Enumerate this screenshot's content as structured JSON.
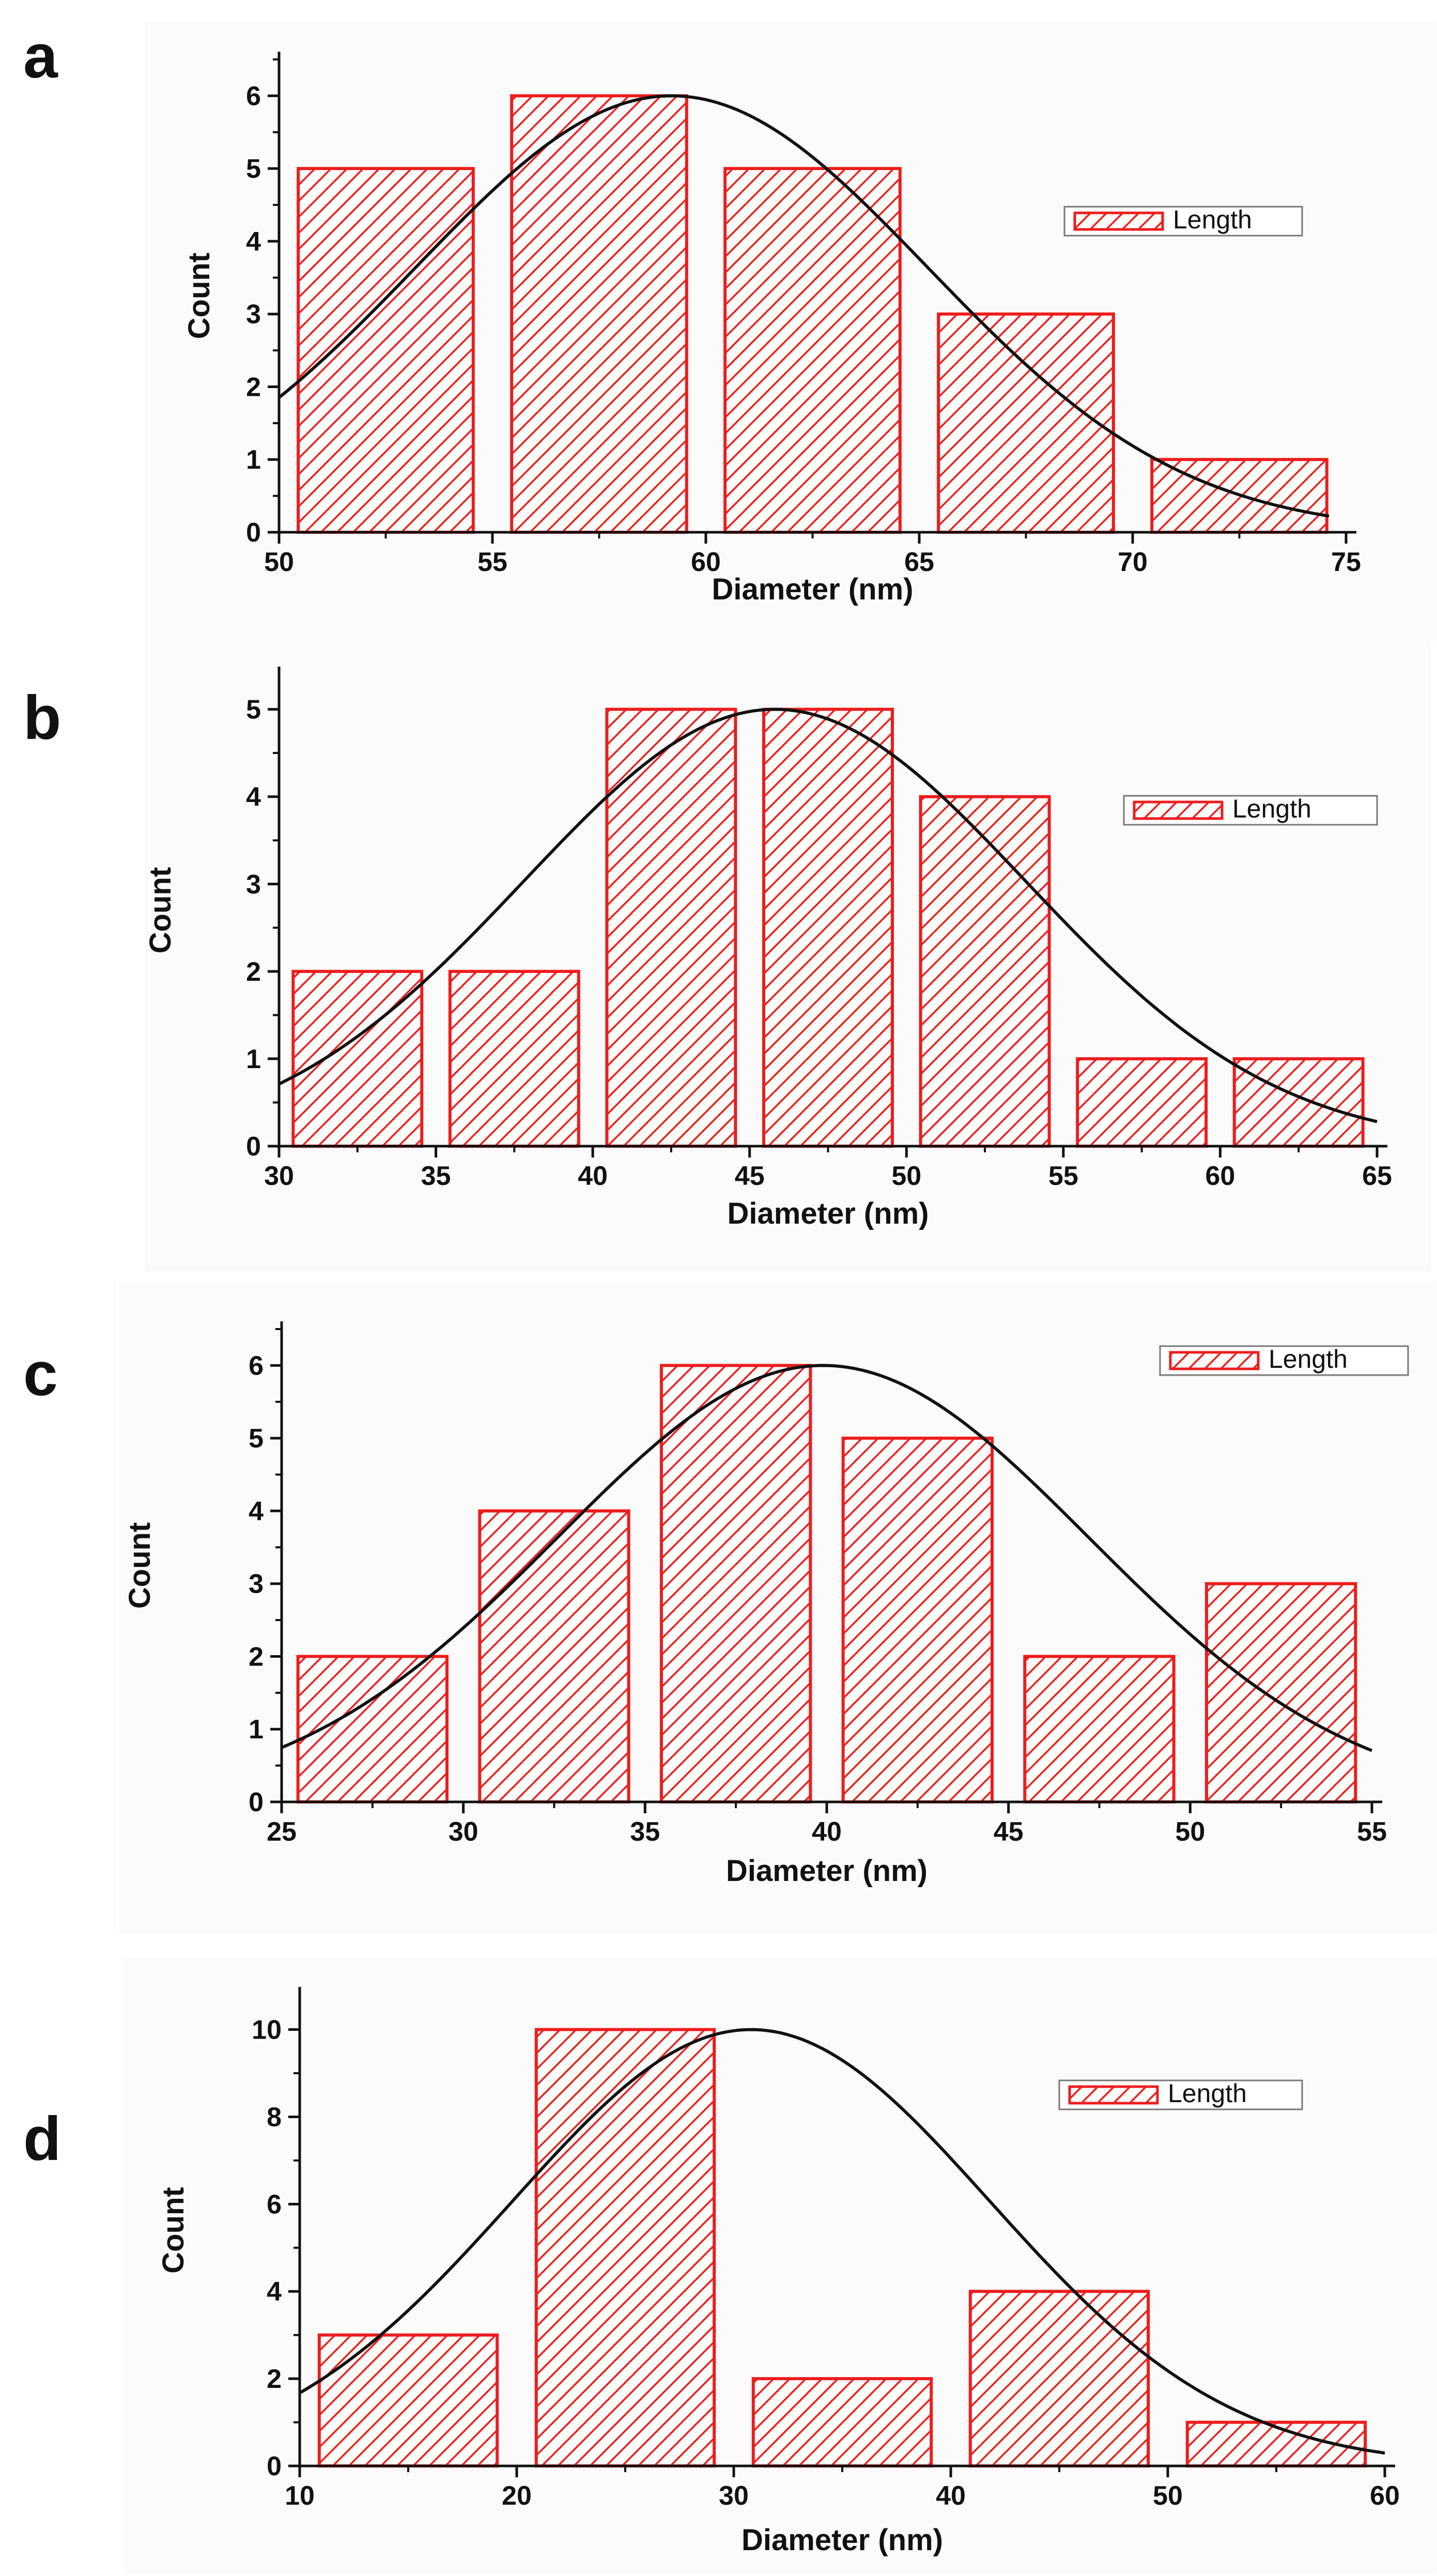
{
  "colors": {
    "bar_edge": "#ee1c1c",
    "hatch": "#ee1c1c",
    "curve": "#111111",
    "axis": "#111111",
    "panel_bg": "#fbfbfb"
  },
  "chart_data": [
    {
      "panel": "a",
      "type": "bar",
      "title": "",
      "xlabel": "Diameter (nm)",
      "ylabel": "Count",
      "xlim": [
        50,
        75
      ],
      "ylim": [
        0,
        6.5
      ],
      "xticks": [
        50,
        55,
        60,
        65,
        70,
        75
      ],
      "yticks": [
        0,
        1,
        2,
        3,
        4,
        5,
        6
      ],
      "bins": [
        [
          50,
          55
        ],
        [
          55,
          60
        ],
        [
          60,
          65
        ],
        [
          65,
          70
        ],
        [
          70,
          75
        ]
      ],
      "values": [
        5,
        6,
        5,
        3,
        1
      ],
      "legend": "Length",
      "fit": {
        "type": "gaussian",
        "mean": 59.2,
        "sigma": 6.0,
        "amplitude": 6.0,
        "x_range": [
          50,
          74.6
        ]
      }
    },
    {
      "panel": "b",
      "type": "bar",
      "title": "",
      "xlabel": "Diameter (nm)",
      "ylabel": "Count",
      "xlim": [
        30,
        65
      ],
      "ylim": [
        0,
        5.4
      ],
      "xticks": [
        30,
        35,
        40,
        45,
        50,
        55,
        60,
        65
      ],
      "yticks": [
        0,
        1,
        2,
        3,
        4,
        5
      ],
      "bins": [
        [
          30,
          35
        ],
        [
          35,
          40
        ],
        [
          40,
          45
        ],
        [
          45,
          50
        ],
        [
          50,
          55
        ],
        [
          55,
          60
        ],
        [
          60,
          65
        ]
      ],
      "values": [
        2,
        2,
        5,
        5,
        4,
        1,
        1
      ],
      "legend": "Length",
      "fit": {
        "type": "gaussian",
        "mean": 45.8,
        "sigma": 8.0,
        "amplitude": 5.0,
        "x_range": [
          30,
          65
        ]
      }
    },
    {
      "panel": "c",
      "type": "bar",
      "title": "",
      "xlabel": "Diameter (nm)",
      "ylabel": "Count",
      "xlim": [
        25,
        55
      ],
      "ylim": [
        0,
        6.5
      ],
      "xticks": [
        25,
        30,
        35,
        40,
        45,
        50,
        55
      ],
      "yticks": [
        0,
        1,
        2,
        3,
        4,
        5,
        6
      ],
      "bins": [
        [
          25,
          30
        ],
        [
          30,
          35
        ],
        [
          35,
          40
        ],
        [
          40,
          45
        ],
        [
          45,
          50
        ],
        [
          50,
          55
        ]
      ],
      "values": [
        2,
        4,
        6,
        5,
        2,
        3
      ],
      "legend": "Length",
      "fit": {
        "type": "gaussian",
        "mean": 39.9,
        "sigma": 7.3,
        "amplitude": 6.0,
        "x_range": [
          25,
          55
        ]
      }
    },
    {
      "panel": "d",
      "type": "bar",
      "title": "",
      "xlabel": "Diameter (nm)",
      "ylabel": "Count",
      "xlim": [
        10,
        60
      ],
      "ylim": [
        0,
        10.8
      ],
      "xticks": [
        10,
        20,
        30,
        40,
        50,
        60
      ],
      "yticks": [
        0,
        2,
        4,
        6,
        8,
        10
      ],
      "bins": [
        [
          10,
          20
        ],
        [
          20,
          30
        ],
        [
          30,
          40
        ],
        [
          40,
          50
        ],
        [
          50,
          60
        ]
      ],
      "values": [
        3,
        10,
        2,
        4,
        1
      ],
      "legend": "Length",
      "fit": {
        "type": "gaussian",
        "mean": 30.8,
        "sigma": 11.0,
        "amplitude": 10.0,
        "x_range": [
          10,
          60
        ]
      }
    }
  ]
}
